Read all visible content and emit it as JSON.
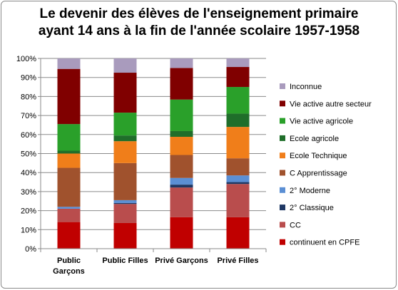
{
  "chart_data": {
    "type": "bar",
    "stacked": true,
    "normalized": true,
    "title": [
      "Le devenir des élèves de l'enseignement primaire",
      "ayant 14 ans à la fin de l'année scolaire 1957-1958"
    ],
    "categories": [
      "Public Garçons",
      "Public Filles",
      "Privé Garçons",
      "Privé Filles"
    ],
    "y_ticks": [
      "0%",
      "10%",
      "20%",
      "30%",
      "40%",
      "50%",
      "60%",
      "70%",
      "80%",
      "90%",
      "100%"
    ],
    "ylim": [
      0,
      100
    ],
    "grid": true,
    "legend_position": "right",
    "series": [
      {
        "name": "continuent en CPFE",
        "color": "#c00000",
        "values": [
          14,
          13.5,
          16.5,
          16.5
        ]
      },
      {
        "name": "CC",
        "color": "#b94d4d",
        "values": [
          7,
          10,
          15.5,
          17.5
        ]
      },
      {
        "name": "2° Classique",
        "color": "#1f3864",
        "values": [
          0,
          0.5,
          1.5,
          1
        ]
      },
      {
        "name": "2° Moderne",
        "color": "#5b8fd4",
        "values": [
          1,
          1.5,
          3.5,
          3.5
        ]
      },
      {
        "name": "C Apprentissage",
        "color": "#a0522d",
        "values": [
          20.5,
          19.5,
          12,
          9
        ]
      },
      {
        "name": "Ecole Technique",
        "color": "#f07e1a",
        "values": [
          7.5,
          11.5,
          9.5,
          16.5
        ]
      },
      {
        "name": "Ecole agricole",
        "color": "#1f6e2a",
        "values": [
          1.5,
          3,
          3,
          7
        ]
      },
      {
        "name": "Vie active agricole",
        "color": "#2aa02a",
        "values": [
          14,
          12,
          16.5,
          14
        ]
      },
      {
        "name": "Vie active autre secteur",
        "color": "#800000",
        "values": [
          29,
          21,
          16.5,
          10.5
        ]
      },
      {
        "name": "Inconnue",
        "color": "#a99bbd",
        "values": [
          5.5,
          7.5,
          5,
          4.5
        ]
      }
    ]
  }
}
